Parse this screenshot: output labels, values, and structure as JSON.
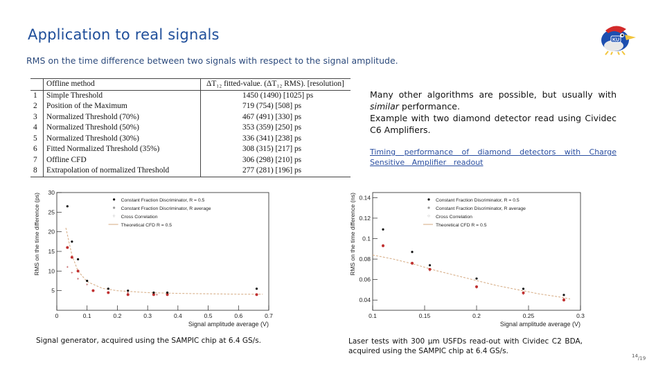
{
  "title": "Application to real signals",
  "subtitle": "RMS on the time difference between two signals with respect to the signal amplitude.",
  "table": {
    "headers": [
      "Offline method",
      "ΔT₁₂ fitted-value. (ΔT₁₂ RMS). [resolution]"
    ],
    "rows": [
      {
        "n": "1",
        "method": "Simple Threshold",
        "value": "1450 (1490) [1025] ps"
      },
      {
        "n": "2",
        "method": "Position of the Maximum",
        "value": "719 (754) [508] ps"
      },
      {
        "n": "3",
        "method": "Normalized Threshold (70%)",
        "value": "467 (491) [330] ps"
      },
      {
        "n": "4",
        "method": "Normalized Threshold (50%)",
        "value": "353 (359) [250] ps"
      },
      {
        "n": "5",
        "method": "Normalized Threshold (30%)",
        "value": "336 (341) [238] ps"
      },
      {
        "n": "6",
        "method": "Fitted Normalized Threshold (35%)",
        "value": "308 (315) [217] ps"
      },
      {
        "n": "7",
        "method": "Offline CFD",
        "value": "306 (298) [210] ps"
      },
      {
        "n": "8",
        "method": "Extrapolation of normalized Threshold",
        "value": "277 (281) [196] ps"
      }
    ]
  },
  "text": {
    "p1_a": "Many other algorithms are possible, but usually with ",
    "p1_em": "similar",
    "p1_b": " performance.",
    "p2": "Example with two diamond detector read using Cividec C6 Amplifiers.",
    "link": "Timing performance of diamond detectors with Charge Sensitive Amplifier readout"
  },
  "captions": {
    "left": "Signal generator, acquired using the SAMPIC chip at 6.4 GS/s.",
    "right": "Laser tests with 300 µm USFDs read-out with Cividec C2 BDA, acquired using the SAMPIC chip at 6.4 GS/s."
  },
  "page": {
    "current": "14",
    "total": "/19"
  },
  "colors": {
    "title": "#1f4e9a",
    "link": "#2a4ea0",
    "series_cfd05": "#111111",
    "series_avg": "#c03030",
    "series_cc": "#b03030",
    "fit": "#d8b08a"
  },
  "chart_data": [
    {
      "type": "scatter",
      "xlabel": "Signal amplitude average (V)",
      "ylabel": "RMS on the time difference (ps)",
      "xlim": [
        0,
        0.7
      ],
      "ylim": [
        0,
        30
      ],
      "xticks": [
        "0",
        "0.1",
        "0.2",
        "0.3",
        "0.4",
        "0.5",
        "0.6",
        "0.7"
      ],
      "yticks": [
        "5",
        "10",
        "15",
        "20",
        "25",
        "30"
      ],
      "legend": "top-right",
      "series": [
        {
          "name": "Constant Fraction Discriminator, R = 0.5",
          "x": [
            0.035,
            0.05,
            0.07,
            0.1,
            0.17,
            0.235,
            0.32,
            0.365,
            0.66
          ],
          "y": [
            26.5,
            17.5,
            13,
            7.5,
            5.5,
            5,
            4.5,
            4.5,
            5.5
          ]
        },
        {
          "name": "Constant Fraction Discriminator, R average",
          "x": [
            0.035,
            0.05,
            0.07,
            0.12,
            0.17,
            0.235,
            0.32,
            0.365,
            0.66
          ],
          "y": [
            16,
            13.5,
            10,
            5,
            4.5,
            4,
            4,
            4,
            4
          ]
        },
        {
          "name": "Cross Correlation",
          "x": [
            0.035,
            0.05,
            0.07,
            0.1,
            0.17,
            0.235,
            0.33,
            0.365,
            0.66
          ],
          "y": [
            11,
            9.5,
            8,
            6.5,
            5.5,
            4.5,
            4,
            4,
            4
          ]
        },
        {
          "name": "Theoretical CFD R = 0.5",
          "x": [
            0.03,
            0.05,
            0.07,
            0.1,
            0.15,
            0.2,
            0.3,
            0.4,
            0.5,
            0.6,
            0.68
          ],
          "y": [
            21,
            14,
            10,
            7.3,
            5.6,
            5.0,
            4.5,
            4.3,
            4.2,
            4.1,
            4.1
          ]
        }
      ]
    },
    {
      "type": "scatter",
      "xlabel": "Signal amplitude average (V)",
      "ylabel": "RMS on the time difference (ns)",
      "xlim": [
        0.1,
        0.3
      ],
      "ylim": [
        0.03,
        0.145
      ],
      "xticks": [
        "0.1",
        "0.15",
        "0.2",
        "0.25",
        "0.3"
      ],
      "yticks": [
        "0.04",
        "0.06",
        "0.08",
        "0.1",
        "0.12",
        "0.14"
      ],
      "legend": "top-right",
      "series": [
        {
          "name": "Constant Fraction Discriminator, R = 0.5",
          "x": [
            0.11,
            0.138,
            0.155,
            0.2,
            0.245,
            0.284
          ],
          "y": [
            0.109,
            0.087,
            0.074,
            0.061,
            0.051,
            0.045
          ]
        },
        {
          "name": "Constant Fraction Discriminator, R average",
          "x": [
            0.11,
            0.138,
            0.155,
            0.2,
            0.245,
            0.284
          ],
          "y": [
            0.093,
            0.076,
            0.07,
            0.053,
            0.047,
            0.04
          ]
        },
        {
          "name": "Cross Correlation",
          "x": [
            0.11,
            0.138,
            0.155,
            0.2,
            0.245,
            0.284
          ],
          "y": [
            0.094,
            0.075,
            0.069,
            0.052,
            0.046,
            0.041
          ]
        },
        {
          "name": "Theoretical CFD R = 0.5",
          "x": [
            0.1,
            0.12,
            0.14,
            0.16,
            0.18,
            0.2,
            0.22,
            0.24,
            0.26,
            0.28,
            0.29
          ],
          "y": [
            0.084,
            0.08,
            0.075,
            0.069,
            0.064,
            0.059,
            0.054,
            0.05,
            0.046,
            0.043,
            0.041
          ]
        }
      ]
    }
  ]
}
